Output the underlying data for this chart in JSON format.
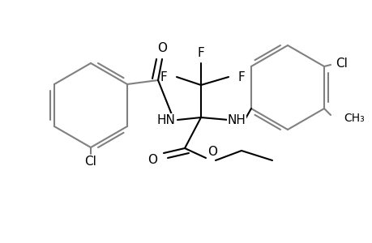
{
  "bg_color": "#ffffff",
  "line_color": "#000000",
  "ring_color": "#808080",
  "line_width": 1.5,
  "dpi": 100,
  "figsize": [
    4.6,
    3.0
  ],
  "xlim": [
    0,
    460
  ],
  "ylim": [
    0,
    300
  ]
}
